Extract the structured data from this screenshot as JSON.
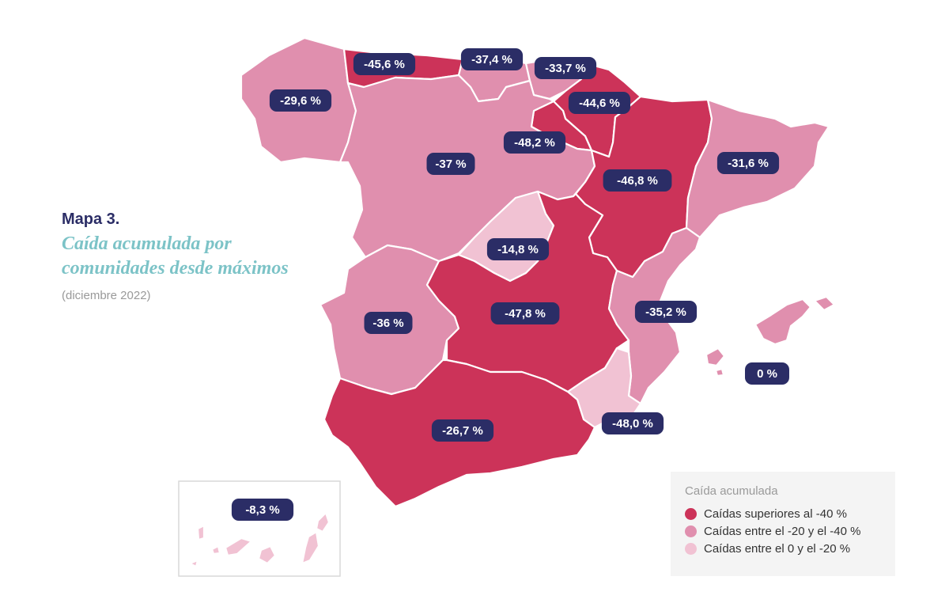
{
  "header": {
    "map_number": "Mapa 3.",
    "title": "Caída acumulada por comunidades desde máximos",
    "subtitle": "(diciembre 2022)"
  },
  "colors": {
    "high": "#cc3359",
    "mid": "#e08fae",
    "low": "#f1c2d3",
    "badge": "#2b2d66",
    "title_teal": "#7cc3c7"
  },
  "legend": {
    "title": "Caída acumulada",
    "items": [
      {
        "label": "Caídas superiores al -40 %",
        "color": "#cc3359"
      },
      {
        "label": "Caídas entre el -20  y el -40 %",
        "color": "#e08fae"
      },
      {
        "label": "Caídas entre el 0 y el -20 %",
        "color": "#f1c2d3"
      }
    ]
  },
  "regions": [
    {
      "label": "-29,6 %",
      "category": "mid"
    },
    {
      "label": "-45,6 %",
      "category": "high"
    },
    {
      "label": "-37,4 %",
      "category": "mid"
    },
    {
      "label": "-33,7 %",
      "category": "mid"
    },
    {
      "label": "-44,6 %",
      "category": "high"
    },
    {
      "label": "-48,2 %",
      "category": "high"
    },
    {
      "label": "-37 %",
      "category": "mid"
    },
    {
      "label": "-46,8  %",
      "category": "high"
    },
    {
      "label": "-31,6 %",
      "category": "mid"
    },
    {
      "label": "-14,8 %",
      "category": "low"
    },
    {
      "label": "-36 %",
      "category": "mid"
    },
    {
      "label": "-47,8  %",
      "category": "high"
    },
    {
      "label": "-35,2 %",
      "category": "mid"
    },
    {
      "label": "0  %",
      "category": "low"
    },
    {
      "label": "-48,0 %",
      "category": "high"
    },
    {
      "label": "-26,7 %",
      "category": "mid"
    },
    {
      "label": "-8,3  %",
      "category": "low"
    }
  ]
}
